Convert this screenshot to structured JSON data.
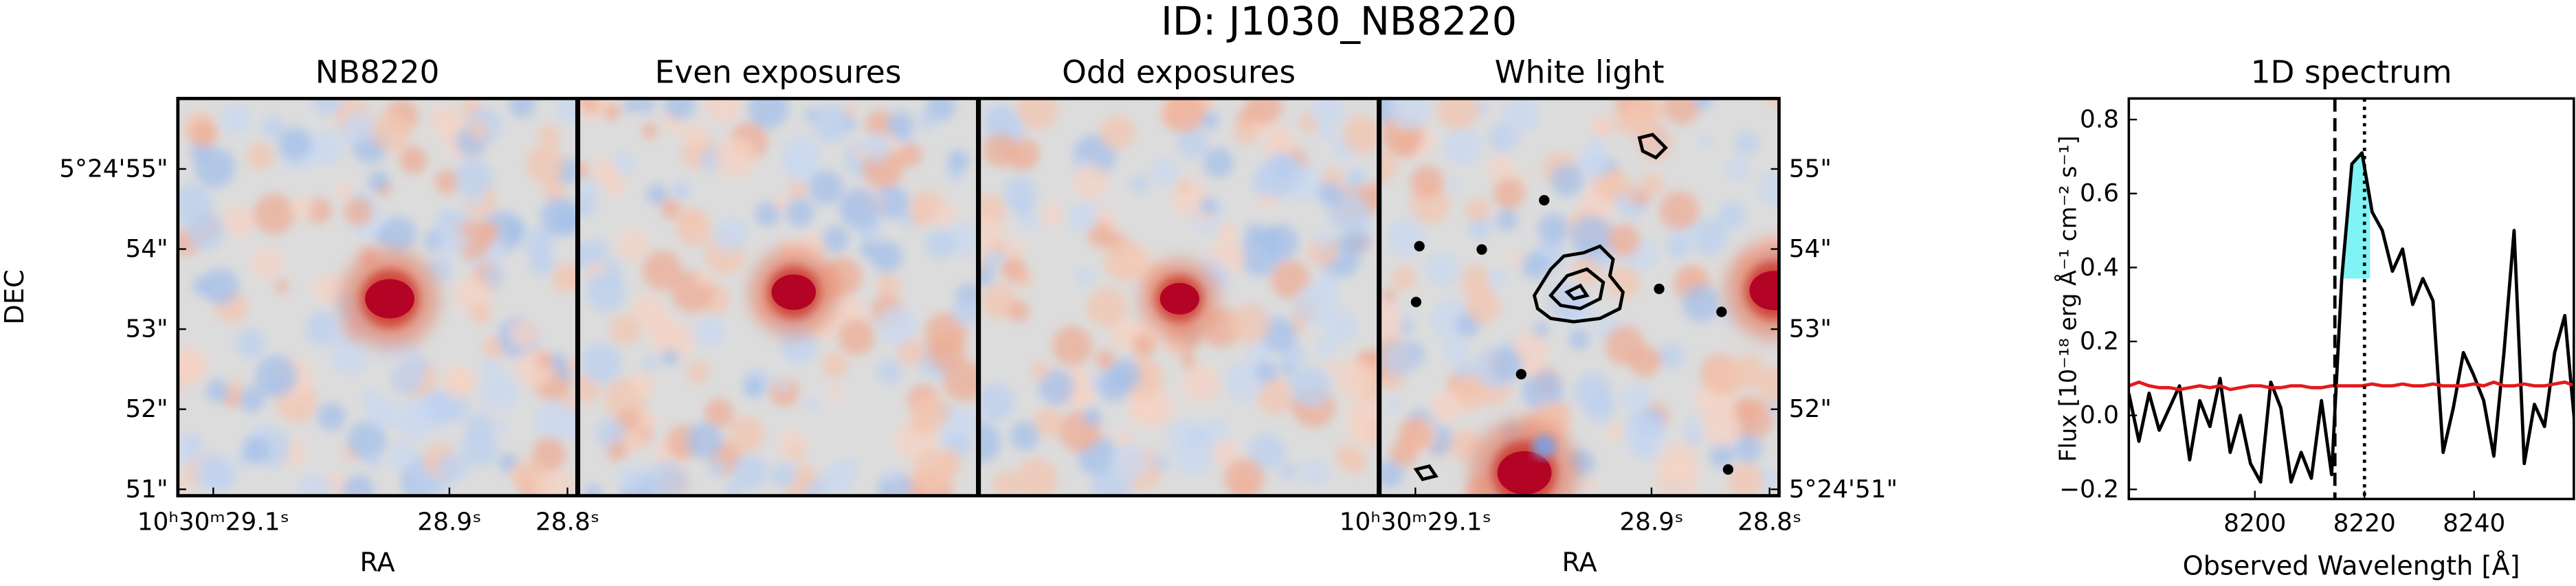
{
  "title": "ID: J1030_NB8220",
  "chart_data": [
    {
      "type": "image",
      "title": "NB8220",
      "xlabel": "RA",
      "ylabel": "DEC",
      "cmap": "coolwarm",
      "xlim": [
        29.13,
        28.792
      ],
      "ylim": [
        50.92,
        55.88
      ],
      "xticks": [
        {
          "value": 29.1,
          "label": "10ʰ30ᵐ29.1ˢ"
        },
        {
          "value": 28.9,
          "label": "28.9ˢ"
        },
        {
          "value": 28.8,
          "label": "28.8ˢ"
        }
      ],
      "yticks": [
        {
          "value": 55,
          "label": "5°24'55\""
        },
        {
          "value": 54,
          "label": "54\""
        },
        {
          "value": 53,
          "label": "53\""
        },
        {
          "value": 52,
          "label": "52\""
        },
        {
          "value": 51,
          "label": "51\""
        }
      ],
      "ytick_side": "left"
    },
    {
      "type": "image",
      "title": "Even exposures",
      "cmap": "coolwarm"
    },
    {
      "type": "image",
      "title": "Odd exposures",
      "cmap": "coolwarm"
    },
    {
      "type": "image",
      "title": "White light",
      "xlabel": "RA",
      "cmap": "coolwarm",
      "contours": true,
      "xlim": [
        29.13,
        28.792
      ],
      "ylim": [
        50.92,
        55.88
      ],
      "xticks": [
        {
          "value": 29.1,
          "label": "10ʰ30ᵐ29.1ˢ"
        },
        {
          "value": 28.9,
          "label": "28.9ˢ"
        },
        {
          "value": 28.8,
          "label": "28.8ˢ"
        }
      ],
      "yticks": [
        {
          "value": 55,
          "label": "55\""
        },
        {
          "value": 54,
          "label": "54\""
        },
        {
          "value": 53,
          "label": "53\""
        },
        {
          "value": 52,
          "label": "52\""
        },
        {
          "value": 51,
          "label": "5°24'51\""
        }
      ],
      "ytick_side": "right"
    },
    {
      "type": "line",
      "title": "1D spectrum",
      "xlabel": "Observed Wavelength [Å]",
      "ylabel": "Flux [10⁻¹⁸ erg Å⁻¹ cm⁻² s⁻¹]",
      "xlim": [
        8177,
        8258.2
      ],
      "ylim": [
        -0.226,
        0.857
      ],
      "xticks": [
        8200,
        8220,
        8240
      ],
      "yticks": [
        0.8,
        0.6,
        0.4,
        0.2,
        {
          "value": 0,
          "label": "0.0"
        },
        {
          "value": -0.2,
          "label": "−0.2"
        }
      ],
      "x": [
        8177.0,
        8178.85,
        8180.7,
        8182.55,
        8184.4,
        8186.25,
        8188.1,
        8189.95,
        8191.8,
        8193.65,
        8195.5,
        8197.35,
        8199.2,
        8201.05,
        8202.9,
        8204.75,
        8206.6,
        8208.45,
        8210.3,
        8212.15,
        8214.0,
        8215.85,
        8217.7,
        8219.55,
        8221.4,
        8223.25,
        8225.1,
        8226.95,
        8228.8,
        8230.65,
        8232.5,
        8234.35,
        8236.2,
        8238.05,
        8239.9,
        8241.75,
        8243.6,
        8245.45,
        8247.3,
        8249.15,
        8251.0,
        8252.85,
        8254.7,
        8256.55,
        8258.4
      ],
      "series": [
        {
          "color": "#000000",
          "values": [
            0.06,
            -0.07,
            0.06,
            -0.04,
            0.02,
            0.08,
            -0.12,
            0.04,
            -0.03,
            0.1,
            -0.1,
            0.0,
            -0.13,
            -0.18,
            0.09,
            0.02,
            -0.18,
            -0.1,
            -0.17,
            0.04,
            -0.16,
            0.37,
            0.68,
            0.71,
            0.55,
            0.5,
            0.39,
            0.45,
            0.3,
            0.37,
            0.31,
            -0.1,
            0.02,
            0.17,
            0.11,
            0.04,
            -0.11,
            0.17,
            0.5,
            -0.13,
            0.03,
            -0.03,
            0.17,
            0.27,
            -0.03
          ]
        },
        {
          "color": "#e41a1c",
          "values": [
            0.08,
            0.09,
            0.08,
            0.075,
            0.075,
            0.07,
            0.075,
            0.08,
            0.075,
            0.08,
            0.07,
            0.075,
            0.08,
            0.08,
            0.075,
            0.075,
            0.08,
            0.08,
            0.075,
            0.075,
            0.08,
            0.08,
            0.08,
            0.08,
            0.085,
            0.08,
            0.08,
            0.085,
            0.08,
            0.08,
            0.085,
            0.08,
            0.08,
            0.08,
            0.085,
            0.08,
            0.09,
            0.08,
            0.08,
            0.085,
            0.08,
            0.08,
            0.085,
            0.09,
            0.08
          ]
        }
      ],
      "vlines": [
        {
          "x": 8214.6,
          "style": "dashed",
          "color": "#000000"
        },
        {
          "x": 8220,
          "style": "dotted",
          "color": "#000000"
        }
      ],
      "highlight": {
        "xlim": [
          8215.85,
          8221
        ],
        "ymin": 0.37,
        "color": "#80f3f5"
      }
    }
  ]
}
